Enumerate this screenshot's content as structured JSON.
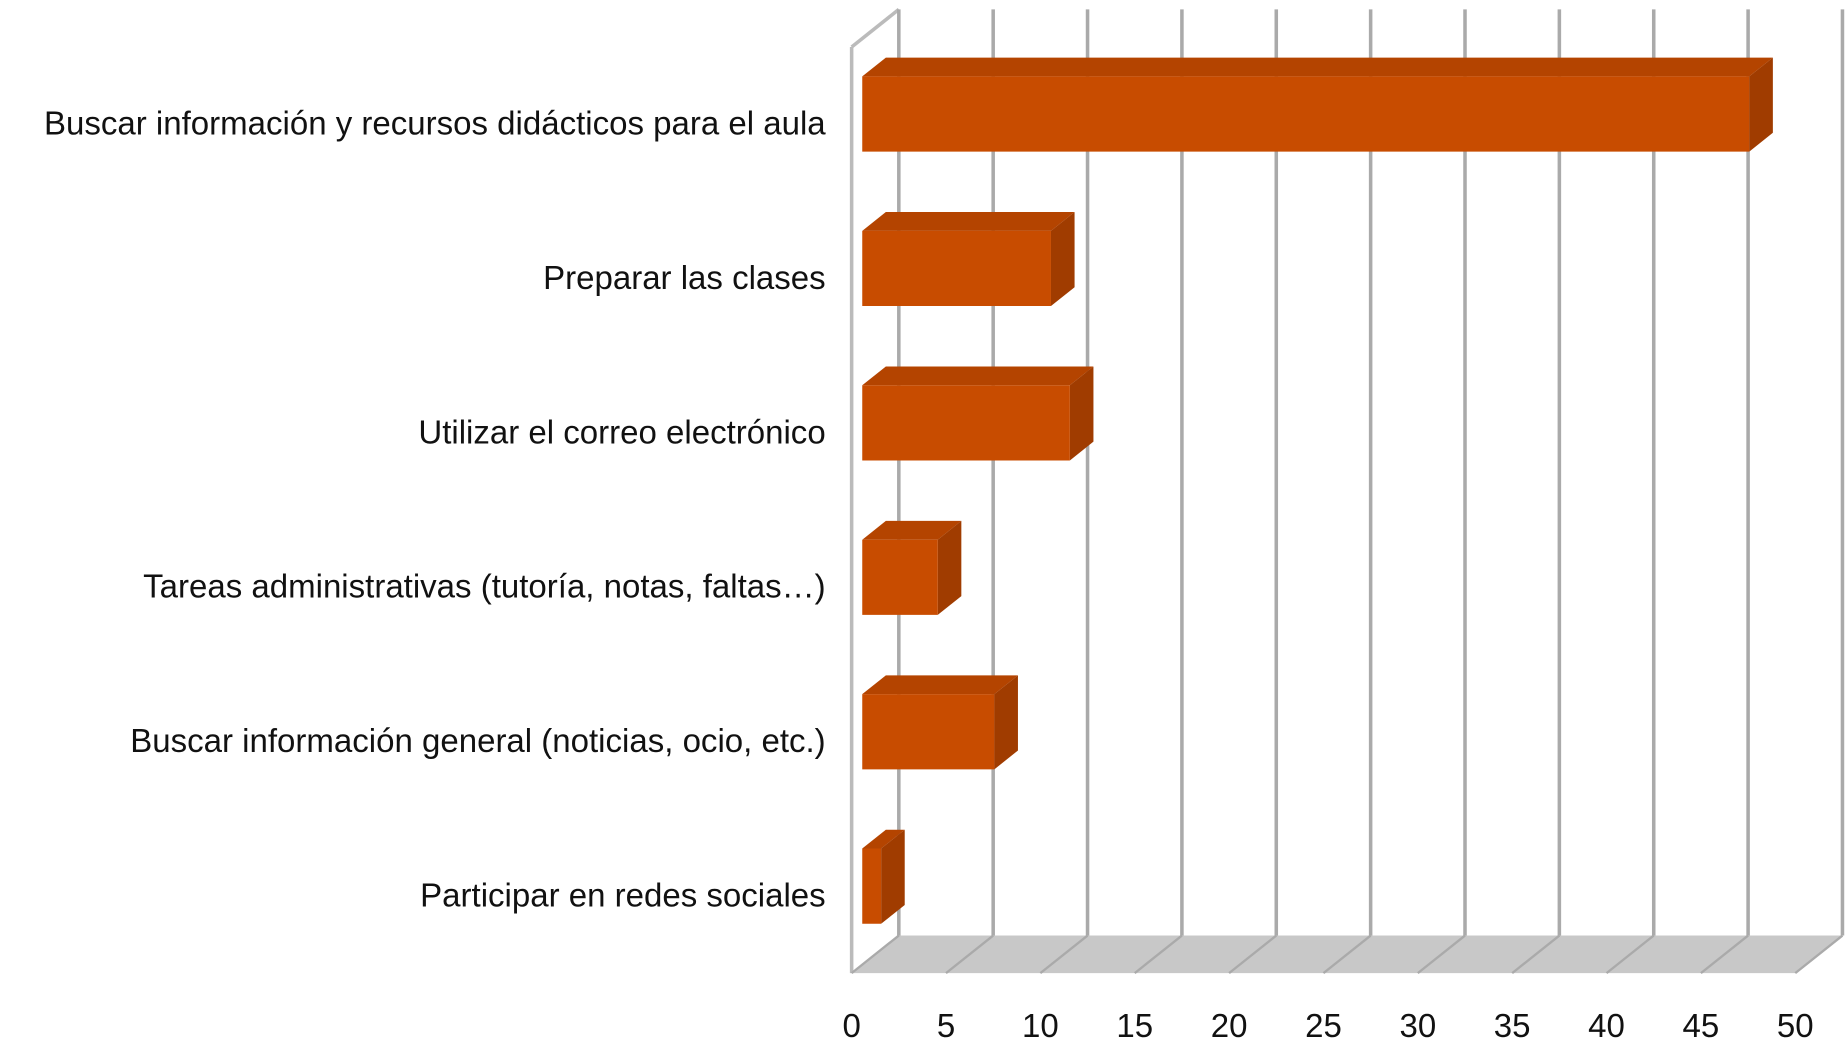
{
  "chart_data": {
    "type": "bar",
    "orientation": "horizontal",
    "categories": [
      "Buscar información y recursos didácticos para el aula",
      "Preparar las clases",
      "Utilizar el correo electrónico",
      "Tareas administrativas (tutoría, notas, faltas…)",
      "Buscar información general (noticias, ocio, etc.)",
      "Participar en redes sociales"
    ],
    "values": [
      47,
      10,
      11,
      4,
      7,
      1
    ],
    "color": "#c84c00",
    "xlim": [
      0,
      50
    ],
    "xticks": [
      0,
      5,
      10,
      15,
      20,
      25,
      30,
      35,
      40,
      45,
      50
    ],
    "grid": true
  }
}
